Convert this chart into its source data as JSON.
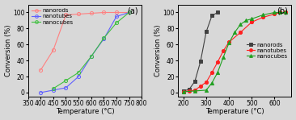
{
  "panel_a": {
    "nanorods": {
      "x": [
        400,
        450,
        500,
        550,
        600,
        650,
        700,
        750
      ],
      "y": [
        28,
        53,
        97,
        98,
        99,
        100,
        100,
        100
      ],
      "color": "#FF8080",
      "marker": "o",
      "markerfacecolor": "none"
    },
    "nanotubes": {
      "x": [
        400,
        450,
        500,
        550,
        600,
        650,
        700,
        750
      ],
      "y": [
        0,
        3,
        6,
        20,
        45,
        67,
        95,
        100
      ],
      "color": "#6060FF",
      "marker": "o",
      "markerfacecolor": "none"
    },
    "nanocubes": {
      "x": [
        450,
        500,
        550,
        600,
        650,
        700,
        750
      ],
      "y": [
        5,
        15,
        25,
        45,
        68,
        87,
        100
      ],
      "color": "#40C040",
      "marker": "o",
      "markerfacecolor": "none"
    },
    "xlim": [
      350,
      800
    ],
    "ylim": [
      -5,
      110
    ],
    "xticks": [
      350,
      400,
      450,
      500,
      550,
      600,
      650,
      700,
      750,
      800
    ],
    "yticks": [
      0,
      20,
      40,
      60,
      80,
      100
    ],
    "xlabel": "Temperature (°C)",
    "ylabel": "Conversion (%)",
    "label": "(a)",
    "legend_loc": "upper left",
    "legend_bbox": null
  },
  "panel_b": {
    "nanorods": {
      "x": [
        200,
        225,
        250,
        275,
        300,
        325,
        350
      ],
      "y": [
        2,
        4,
        14,
        39,
        76,
        96,
        100
      ],
      "color": "#404040",
      "marker": "s",
      "markerfacecolor": "#404040"
    },
    "nanotubes": {
      "x": [
        200,
        225,
        250,
        275,
        300,
        325,
        350,
        375,
        400,
        450,
        500,
        550,
        600,
        625,
        650
      ],
      "y": [
        1,
        2,
        3,
        8,
        13,
        25,
        38,
        52,
        63,
        75,
        88,
        94,
        98,
        100,
        100
      ],
      "color": "#FF2020",
      "marker": "o",
      "markerfacecolor": "#FF2020"
    },
    "nanocubes": {
      "x": [
        200,
        250,
        300,
        325,
        350,
        375,
        400,
        425,
        450,
        475,
        500,
        550,
        600,
        625,
        650
      ],
      "y": [
        1,
        2,
        3,
        12,
        25,
        44,
        62,
        75,
        85,
        90,
        92,
        97,
        100,
        100,
        100
      ],
      "color": "#20A020",
      "marker": "^",
      "markerfacecolor": "#20A020"
    },
    "xlim": [
      175,
      675
    ],
    "ylim": [
      -5,
      110
    ],
    "xticks": [
      200,
      300,
      400,
      500,
      600
    ],
    "yticks": [
      0,
      20,
      40,
      60,
      80,
      100
    ],
    "xlabel": "Temperature (°C)",
    "ylabel": "Conversion (%)",
    "label": "(b)",
    "legend_loc": "center right",
    "legend_bbox": null
  }
}
